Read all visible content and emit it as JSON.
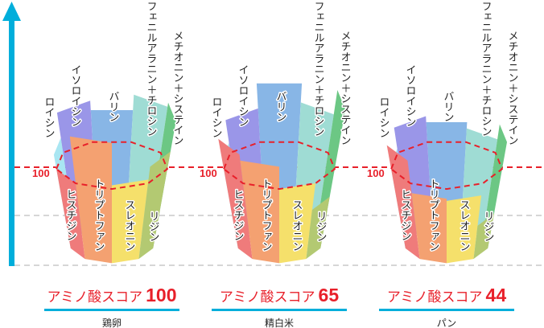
{
  "ring_label": "100",
  "amino_acids": [
    {
      "key": "histidine",
      "label": "ヒスチジン",
      "color": "#ef7b7b"
    },
    {
      "key": "tryptophan",
      "label": "トリプトファン",
      "color": "#f4a171"
    },
    {
      "key": "threonine",
      "label": "スレオニン",
      "color": "#f5e06b"
    },
    {
      "key": "lysine",
      "label": "リジン",
      "color": "#b3c972"
    },
    {
      "key": "methionine_cysteine",
      "label": "メチオニン＋システイン",
      "color": "#6cc784"
    },
    {
      "key": "phenylalanine_tyrosine",
      "label": "フェニルアラニン＋チロシン",
      "color": "#9fdcd4"
    },
    {
      "key": "valine",
      "label": "バリン",
      "color": "#88b6e6"
    },
    {
      "key": "isoleucine",
      "label": "イソロイシン",
      "color": "#9a96e8"
    },
    {
      "key": "leucine",
      "label": "ロイシン",
      "color": "#a9e6f2"
    }
  ],
  "barrels": [
    {
      "food": "鶏卵",
      "score_prefix": "アミノ酸スコア",
      "score": "100",
      "levels": {
        "histidine": 100,
        "tryptophan": 162,
        "threonine": 105,
        "lysine": 122,
        "methionine_cysteine": 160,
        "phenylalanine_tyrosine": 155,
        "valine": 137,
        "isoleucine": 148,
        "leucine": 118
      }
    },
    {
      "food": "精白米",
      "score_prefix": "アミノ酸スコア",
      "score": "65",
      "levels": {
        "histidine": 138,
        "tryptophan": 130,
        "threonine": 100,
        "lysine": 65,
        "methionine_cysteine": 175,
        "phenylalanine_tyrosine": 146,
        "valine": 168,
        "isoleucine": 139,
        "leucine": 112
      }
    },
    {
      "food": "パン",
      "score_prefix": "アミノ酸スコア",
      "score": "44",
      "levels": {
        "histidine": 130,
        "tryptophan": 87,
        "threonine": 84,
        "lysine": 44,
        "methionine_cysteine": 134,
        "phenylalanine_tyrosine": 116,
        "valine": 123,
        "isoleucine": 130,
        "leucine": 105
      }
    }
  ],
  "colors": {
    "axis": "#00aedb",
    "reference_line": "#e8202a",
    "grid": "#c8c8c8",
    "score_text": "#e8202a"
  }
}
